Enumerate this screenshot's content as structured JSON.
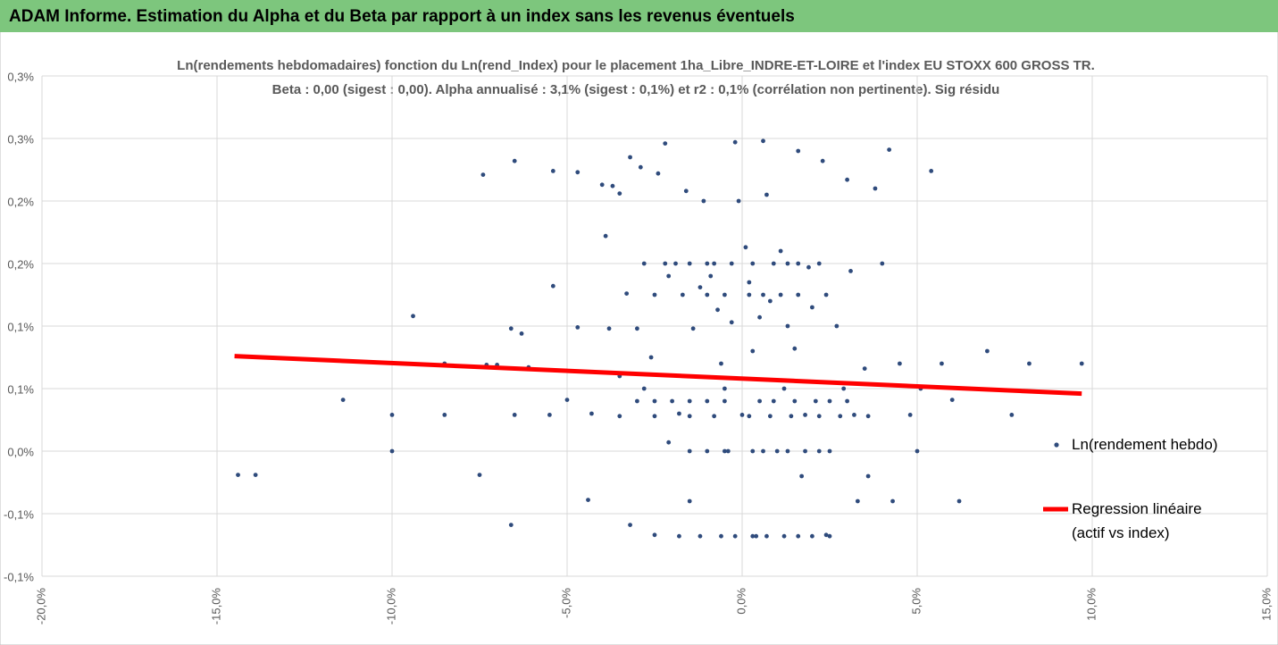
{
  "header": {
    "title": "ADAM Informe. Estimation du Alpha et du Beta par rapport à un index sans les revenus éventuels"
  },
  "chart_data": {
    "type": "scatter",
    "title": "Ln(rendements hebdomadaires) fonction du Ln(rend_Index) pour le placement 1ha_Libre_INDRE-ET-LOIRE et l'index EU STOXX 600 GROSS TR.",
    "subtitle": "Beta : 0,00 (sigest : 0,00). Alpha annualisé : 3,1% (sigest : 0,1%) et r2 : 0,1% (corrélation non pertinente). Sig résidu",
    "xlim": [
      -20,
      15
    ],
    "xticks": [
      {
        "value": -20,
        "label": "-20,0%"
      },
      {
        "value": -15,
        "label": "-15,0%"
      },
      {
        "value": -10,
        "label": "-10,0%"
      },
      {
        "value": -5,
        "label": "-5,0%"
      },
      {
        "value": 0,
        "label": "0,0%"
      },
      {
        "value": 5,
        "label": "5,0%"
      },
      {
        "value": 10,
        "label": "10,0%"
      },
      {
        "value": 15,
        "label": "15,0%"
      }
    ],
    "ylim": [
      -0.1,
      0.3
    ],
    "yticks": [
      {
        "value": -0.1,
        "label": "-0,1%"
      },
      {
        "value": -0.05,
        "label": "-0,1%"
      },
      {
        "value": 0,
        "label": "0,0%"
      },
      {
        "value": 0.05,
        "label": "0,1%"
      },
      {
        "value": 0.1,
        "label": "0,1%"
      },
      {
        "value": 0.15,
        "label": "0,2%"
      },
      {
        "value": 0.2,
        "label": "0,2%"
      },
      {
        "value": 0.25,
        "label": "0,3%"
      },
      {
        "value": 0.3,
        "label": "0,3%"
      }
    ],
    "grid": true,
    "series": [
      {
        "name": "Ln(rendement hebdo)",
        "type": "scatter",
        "color": "#2f4b7c",
        "x": [
          -14.4,
          -13.9,
          -11.4,
          -10.0,
          -10.0,
          -9.4,
          -8.5,
          -8.5,
          -7.5,
          -7.4,
          -7.3,
          -7.0,
          -6.6,
          -6.6,
          -6.5,
          -6.5,
          -6.3,
          -6.1,
          -5.4,
          -5.4,
          -5.5,
          -5.0,
          -4.7,
          -4.7,
          -4.4,
          -4.3,
          -4.0,
          -3.9,
          -3.8,
          -3.7,
          -3.5,
          -3.5,
          -3.3,
          -3.2,
          -3.2,
          -3.0,
          -2.9,
          -2.8,
          -2.6,
          -2.5,
          -2.4,
          -2.2,
          -2.1,
          -2.1,
          -1.9,
          -1.8,
          -1.6,
          -1.5,
          -1.4,
          -1.2,
          -1.1,
          -1.0,
          -0.9,
          -0.7,
          -0.6,
          -0.5,
          -0.4,
          -0.3,
          -0.2,
          -0.1,
          0.0,
          0.1,
          0.2,
          0.3,
          0.4,
          0.5,
          0.6,
          0.7,
          0.8,
          0.9,
          1.0,
          1.1,
          1.2,
          1.3,
          1.5,
          1.6,
          1.7,
          1.8,
          1.9,
          2.0,
          2.1,
          2.3,
          2.4,
          2.5,
          2.7,
          2.9,
          3.0,
          3.1,
          3.2,
          3.3,
          3.5,
          3.6,
          3.8,
          4.0,
          4.2,
          4.3,
          4.5,
          4.8,
          5.0,
          5.1,
          5.4,
          5.7,
          6.0,
          6.2,
          7.0,
          7.7,
          8.2,
          9.7,
          -3,
          -2.5,
          -2,
          -1.5,
          -1,
          -0.5,
          0.5,
          1.5,
          2.5,
          3,
          -3.5,
          -2.5,
          -1.5,
          -0.8,
          0.2,
          0.8,
          1.4,
          2.2,
          2.8,
          3.6,
          -1.5,
          -1,
          -0.5,
          0.3,
          0.6,
          1.3,
          1.8,
          2.2,
          -1.8,
          -1.2,
          -0.6,
          -0.2,
          0.3,
          0.7,
          1.2,
          1.6,
          2.0,
          2.5,
          -2.8,
          -2.2,
          -1.5,
          -0.8,
          -0.3,
          0.3,
          0.9,
          1.3,
          1.6,
          2.2,
          -2.5,
          -1.7,
          -1.0,
          -0.5,
          0.2,
          0.6,
          1.1,
          1.6,
          2.4
        ],
        "values": [
          -0.019,
          -0.019,
          0.041,
          0.029,
          0.0,
          0.108,
          0.029,
          0.07,
          -0.019,
          0.221,
          0.069,
          0.069,
          -0.059,
          0.098,
          0.029,
          0.232,
          0.094,
          0.067,
          0.224,
          0.132,
          0.029,
          0.041,
          0.099,
          0.223,
          -0.039,
          0.03,
          0.213,
          0.172,
          0.098,
          0.212,
          0.206,
          0.06,
          0.126,
          0.235,
          -0.059,
          0.098,
          0.227,
          0.05,
          0.075,
          -0.067,
          0.222,
          0.246,
          0.14,
          0.007,
          0.15,
          0.03,
          0.208,
          -0.04,
          0.098,
          0.131,
          0.2,
          0.15,
          0.14,
          0.113,
          0.07,
          0.05,
          0.0,
          0.103,
          0.247,
          0.2,
          0.029,
          0.163,
          0.135,
          0.08,
          -0.068,
          0.107,
          0.248,
          0.205,
          0.12,
          0.04,
          0.0,
          0.16,
          0.05,
          0.1,
          0.082,
          0.24,
          -0.02,
          0.029,
          0.147,
          0.115,
          0.04,
          0.232,
          -0.067,
          0.0,
          0.1,
          0.05,
          0.217,
          0.144,
          0.029,
          -0.04,
          0.066,
          -0.02,
          0.21,
          0.15,
          0.241,
          -0.04,
          0.07,
          0.029,
          0.0,
          0.05,
          0.224,
          0.07,
          0.041,
          -0.04,
          0.08,
          0.029,
          0.07,
          0.07,
          0.04,
          0.04,
          0.04,
          0.04,
          0.04,
          0.04,
          0.04,
          0.04,
          0.04,
          0.04,
          0.028,
          0.028,
          0.028,
          0.028,
          0.028,
          0.028,
          0.028,
          0.028,
          0.028,
          0.028,
          0,
          0,
          0,
          0,
          0,
          0,
          0,
          0,
          -0.068,
          -0.068,
          -0.068,
          -0.068,
          -0.068,
          -0.068,
          -0.068,
          -0.068,
          -0.068,
          -0.068,
          0.15,
          0.15,
          0.15,
          0.15,
          0.15,
          0.15,
          0.15,
          0.15,
          0.15,
          0.15,
          0.125,
          0.125,
          0.125,
          0.125,
          0.125,
          0.125,
          0.125,
          0.125,
          0.125
        ]
      },
      {
        "name": "Regression linéaire (actif vs index)",
        "type": "line",
        "color": "#ff0000",
        "x": [
          -14.5,
          9.7
        ],
        "values": [
          0.076,
          0.046
        ]
      }
    ]
  }
}
